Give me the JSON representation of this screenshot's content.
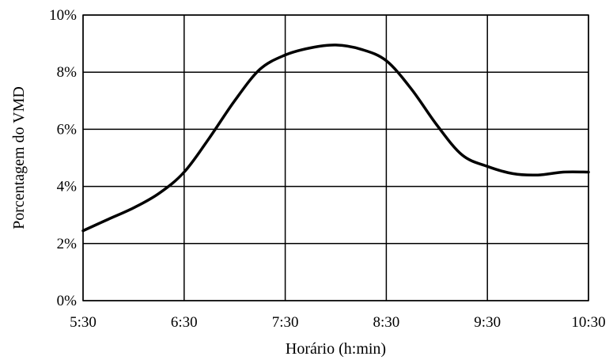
{
  "chart_data": {
    "type": "line",
    "title": "",
    "xlabel": "Horário (h:min)",
    "ylabel": "Porcentagem do VMD",
    "x_ticks": [
      "5:30",
      "6:30",
      "7:30",
      "8:30",
      "9:30",
      "10:30"
    ],
    "y_ticks": [
      "0%",
      "2%",
      "4%",
      "6%",
      "8%",
      "10%"
    ],
    "xlim": [
      "5:30",
      "10:30"
    ],
    "ylim": [
      0,
      10
    ],
    "grid": true,
    "legend": "none",
    "series": [
      {
        "color": "#000000",
        "points": [
          {
            "x": "5:30",
            "y": 2.45
          },
          {
            "x": "5:45",
            "y": 2.85
          },
          {
            "x": "6:00",
            "y": 3.25
          },
          {
            "x": "6:15",
            "y": 3.75
          },
          {
            "x": "6:30",
            "y": 4.5
          },
          {
            "x": "6:45",
            "y": 5.7
          },
          {
            "x": "7:00",
            "y": 7.0
          },
          {
            "x": "7:15",
            "y": 8.1
          },
          {
            "x": "7:30",
            "y": 8.6
          },
          {
            "x": "7:45",
            "y": 8.85
          },
          {
            "x": "8:00",
            "y": 8.95
          },
          {
            "x": "8:15",
            "y": 8.8
          },
          {
            "x": "8:30",
            "y": 8.4
          },
          {
            "x": "8:45",
            "y": 7.4
          },
          {
            "x": "9:00",
            "y": 6.15
          },
          {
            "x": "9:15",
            "y": 5.1
          },
          {
            "x": "9:30",
            "y": 4.7
          },
          {
            "x": "9:45",
            "y": 4.45
          },
          {
            "x": "10:00",
            "y": 4.4
          },
          {
            "x": "10:15",
            "y": 4.5
          },
          {
            "x": "10:30",
            "y": 4.5
          }
        ]
      }
    ]
  }
}
